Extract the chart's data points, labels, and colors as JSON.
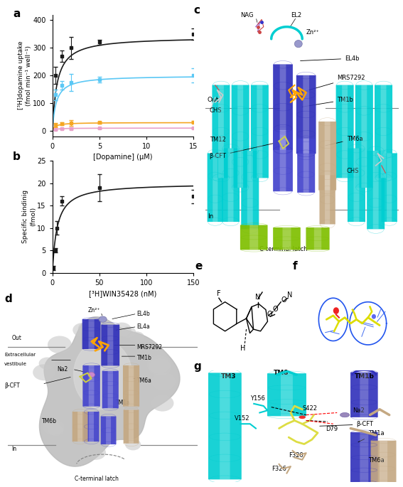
{
  "panel_a": {
    "xlabel": "[Dopamine] (μM)",
    "ylabel": "[³H]dopamine uptake\n(fmol min⁻¹ well⁻¹)",
    "xlim": [
      0,
      15
    ],
    "ylim": [
      -20,
      420
    ],
    "yticks": [
      0,
      100,
      200,
      300,
      400
    ],
    "xticks": [
      0,
      5,
      10,
      15
    ],
    "curves": [
      {
        "color": "#1a1a1a",
        "Vmax": 340,
        "Km": 0.5,
        "points_x": [
          0.3,
          1,
          2,
          5,
          15
        ],
        "points_y": [
          200,
          270,
          300,
          320,
          350
        ],
        "err_y": [
          30,
          20,
          40,
          10,
          20
        ]
      },
      {
        "color": "#5bc8f5",
        "Vmax": 200,
        "Km": 0.4,
        "points_x": [
          0.3,
          1,
          2,
          5,
          15
        ],
        "points_y": [
          130,
          165,
          175,
          185,
          200
        ],
        "err_y": [
          20,
          15,
          30,
          10,
          25
        ]
      },
      {
        "color": "#f5a623",
        "Vmax": 30,
        "Km": 0.3,
        "points_x": [
          0.3,
          1,
          2,
          5,
          15
        ],
        "points_y": [
          20,
          25,
          28,
          30,
          32
        ],
        "err_y": [
          8,
          5,
          10,
          3,
          3
        ]
      },
      {
        "color": "#e8a0c8",
        "Vmax": 10,
        "Km": 0.3,
        "points_x": [
          0.3,
          1,
          2,
          5,
          15
        ],
        "points_y": [
          5,
          8,
          9,
          10,
          11
        ],
        "err_y": [
          2,
          2,
          3,
          1,
          2
        ]
      }
    ]
  },
  "panel_b": {
    "xlabel": "[³H]WIN35428 (nM)",
    "ylabel": "Specific bindinig\n(fmol)",
    "xlim": [
      0,
      150
    ],
    "ylim": [
      0,
      25
    ],
    "yticks": [
      0,
      5,
      10,
      15,
      20,
      25
    ],
    "xticks": [
      0,
      50,
      100,
      150
    ],
    "points_x": [
      1,
      3,
      5,
      10,
      50,
      150
    ],
    "points_y": [
      1,
      5,
      10,
      16,
      19,
      17
    ],
    "err_y": [
      0.5,
      0.5,
      1.5,
      1,
      3,
      1.5
    ],
    "Bmax": 20,
    "Kd": 5,
    "color": "#1a1a1a"
  }
}
